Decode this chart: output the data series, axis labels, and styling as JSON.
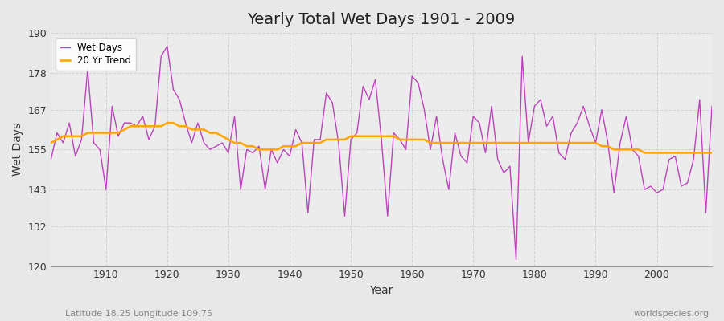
{
  "title": "Yearly Total Wet Days 1901 - 2009",
  "xlabel": "Year",
  "ylabel": "Wet Days",
  "subtitle_left": "Latitude 18.25 Longitude 109.75",
  "subtitle_right": "worldspecies.org",
  "ylim": [
    120,
    190
  ],
  "xlim": [
    1901,
    2009
  ],
  "yticks": [
    120,
    132,
    143,
    155,
    167,
    178,
    190
  ],
  "xticks": [
    1910,
    1920,
    1930,
    1940,
    1950,
    1960,
    1970,
    1980,
    1990,
    2000
  ],
  "wet_days_color": "#BB44BB",
  "trend_color": "#FFA500",
  "background_color": "#E8E8E8",
  "plot_bg_color": "#ECECEC",
  "grid_color": "#CCCCCC",
  "years": [
    1901,
    1902,
    1903,
    1904,
    1905,
    1906,
    1907,
    1908,
    1909,
    1910,
    1911,
    1912,
    1913,
    1914,
    1915,
    1916,
    1917,
    1918,
    1919,
    1920,
    1921,
    1922,
    1923,
    1924,
    1925,
    1926,
    1927,
    1928,
    1929,
    1930,
    1931,
    1932,
    1933,
    1934,
    1935,
    1936,
    1937,
    1938,
    1939,
    1940,
    1941,
    1942,
    1943,
    1944,
    1945,
    1946,
    1947,
    1948,
    1949,
    1950,
    1951,
    1952,
    1953,
    1954,
    1955,
    1956,
    1957,
    1958,
    1959,
    1960,
    1961,
    1962,
    1963,
    1964,
    1965,
    1966,
    1967,
    1968,
    1969,
    1970,
    1971,
    1972,
    1973,
    1974,
    1975,
    1976,
    1977,
    1978,
    1979,
    1980,
    1981,
    1982,
    1983,
    1984,
    1985,
    1986,
    1987,
    1988,
    1989,
    1990,
    1991,
    1992,
    1993,
    1994,
    1995,
    1996,
    1997,
    1998,
    1999,
    2000,
    2001,
    2002,
    2003,
    2004,
    2005,
    2006,
    2007,
    2008,
    2009
  ],
  "wet_days": [
    152,
    160,
    157,
    163,
    153,
    158,
    179,
    157,
    155,
    143,
    168,
    159,
    163,
    163,
    162,
    165,
    158,
    162,
    183,
    186,
    173,
    170,
    163,
    157,
    163,
    157,
    155,
    156,
    157,
    154,
    165,
    143,
    155,
    154,
    156,
    143,
    155,
    151,
    155,
    153,
    161,
    157,
    136,
    158,
    158,
    172,
    169,
    157,
    135,
    158,
    160,
    174,
    170,
    176,
    158,
    135,
    160,
    158,
    155,
    177,
    175,
    167,
    155,
    165,
    152,
    143,
    160,
    153,
    151,
    165,
    163,
    154,
    168,
    152,
    148,
    150,
    122,
    183,
    157,
    168,
    170,
    162,
    165,
    154,
    152,
    160,
    163,
    168,
    162,
    157,
    167,
    157,
    142,
    157,
    165,
    155,
    153,
    143,
    144,
    142,
    143,
    152,
    153,
    144,
    145,
    152,
    170,
    136,
    168
  ],
  "trend": [
    157,
    158,
    159,
    159,
    159,
    159,
    160,
    160,
    160,
    160,
    160,
    160,
    161,
    162,
    162,
    162,
    162,
    162,
    162,
    163,
    163,
    162,
    162,
    161,
    161,
    161,
    160,
    160,
    159,
    158,
    157,
    157,
    156,
    156,
    155,
    155,
    155,
    155,
    156,
    156,
    156,
    157,
    157,
    157,
    157,
    158,
    158,
    158,
    158,
    159,
    159,
    159,
    159,
    159,
    159,
    159,
    159,
    158,
    158,
    158,
    158,
    158,
    157,
    157,
    157,
    157,
    157,
    157,
    157,
    157,
    157,
    157,
    157,
    157,
    157,
    157,
    157,
    157,
    157,
    157,
    157,
    157,
    157,
    157,
    157,
    157,
    157,
    157,
    157,
    157,
    156,
    156,
    155,
    155,
    155,
    155,
    155,
    154,
    154,
    154,
    154,
    154,
    154,
    154,
    154,
    154,
    154,
    154,
    154
  ]
}
